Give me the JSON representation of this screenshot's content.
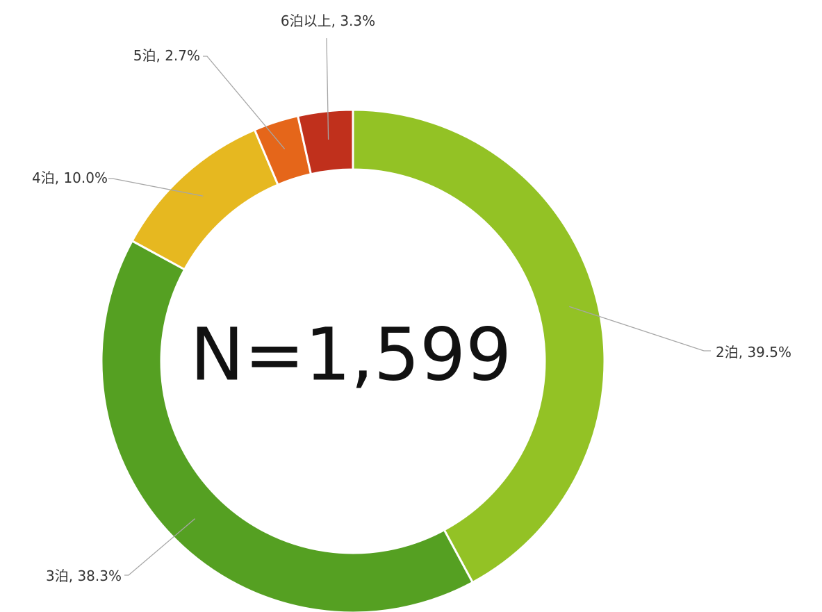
{
  "chart_data": {
    "type": "donut",
    "center_label": "N=1,599",
    "categories": [
      "2泊",
      "3泊",
      "4泊",
      "5泊",
      "6泊以上"
    ],
    "values": [
      39.5,
      38.3,
      10.0,
      2.7,
      3.3
    ],
    "value_labels": [
      "39.5%",
      "38.3%",
      "10.0%",
      "2.7%",
      "3.3%"
    ],
    "label_separator": ", ",
    "colors": [
      "#93c225",
      "#55a022",
      "#e6b820",
      "#e5661a",
      "#c0301c"
    ]
  }
}
